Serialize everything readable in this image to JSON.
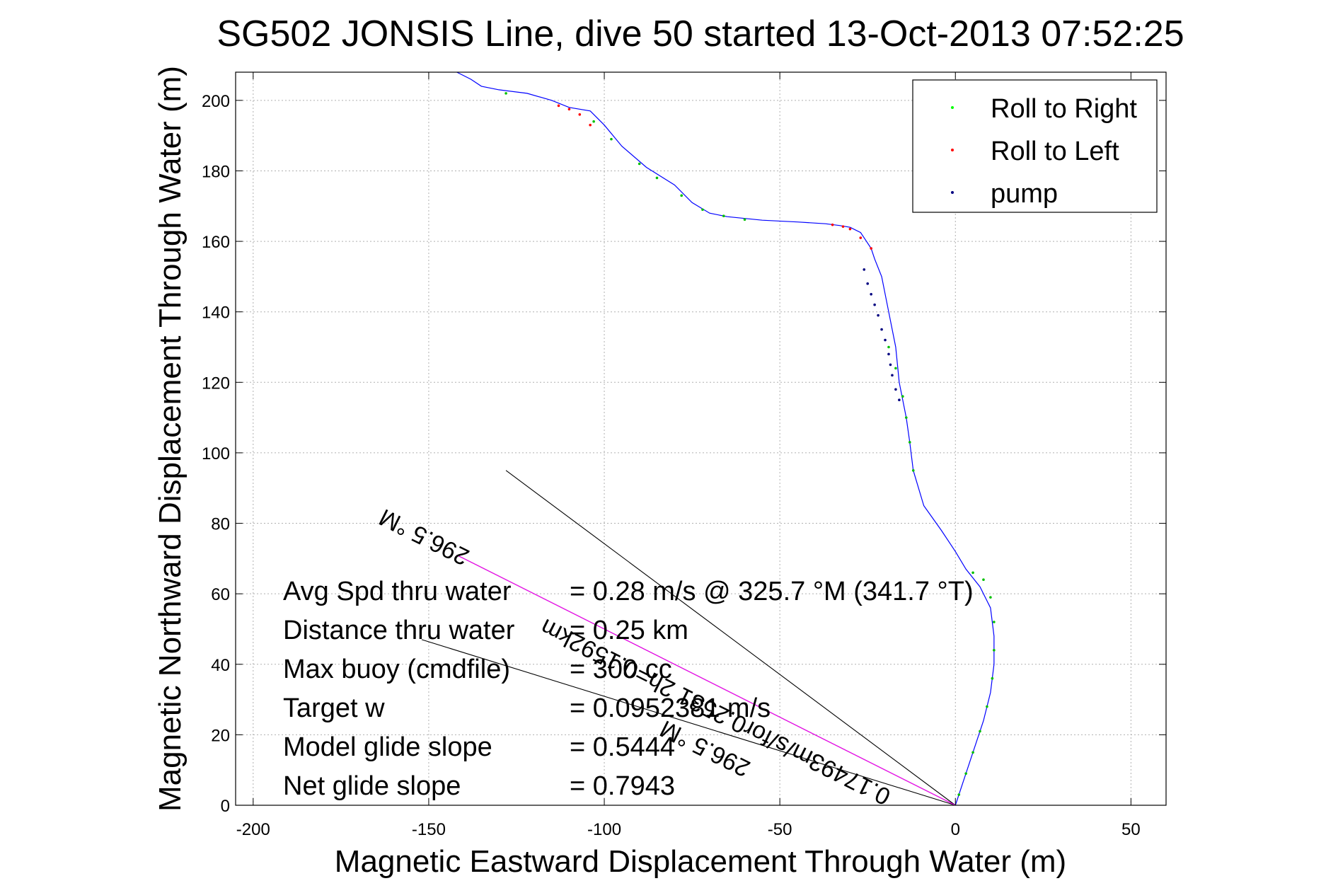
{
  "chart_data": {
    "type": "line",
    "title": "SG502 JONSIS Line, dive 50 started 13-Oct-2013 07:52:25",
    "xlabel": "Magnetic Eastward Displacement Through Water (m)",
    "ylabel": "Magnetic Northward Displacement Through Water (m)",
    "xlim": [
      -205,
      60
    ],
    "ylim": [
      0,
      208
    ],
    "xticks": [
      -200,
      -150,
      -100,
      -50,
      0,
      50
    ],
    "yticks": [
      0,
      20,
      40,
      60,
      80,
      100,
      120,
      140,
      160,
      180,
      200
    ],
    "grid": true,
    "legend_position": "top-right",
    "legend": [
      {
        "label": "Roll to Right",
        "color": "#00ff00"
      },
      {
        "label": "Roll to Left",
        "color": "#ff0000"
      },
      {
        "label": "pump",
        "color": "#000080"
      }
    ],
    "track": {
      "color": "#0000ff",
      "x": [
        0,
        2,
        4,
        6,
        8,
        10,
        11,
        11,
        10,
        7,
        3,
        0,
        -4,
        -9,
        -12,
        -13,
        -14,
        -16,
        -17,
        -19,
        -21,
        -23,
        -24,
        -26,
        -27,
        -30,
        -33,
        -37,
        -45,
        -55,
        -65,
        -70,
        -75,
        -80,
        -88,
        -95,
        -100,
        -104,
        -110,
        -115,
        -122,
        -130,
        -135,
        -138,
        -142
      ],
      "y": [
        0,
        6,
        12,
        18,
        24,
        32,
        40,
        48,
        56,
        62,
        67,
        72,
        78,
        85,
        95,
        103,
        110,
        120,
        130,
        140,
        150,
        155,
        158,
        161,
        162.5,
        164,
        164.5,
        165,
        165.5,
        166,
        167,
        168,
        171,
        176,
        181,
        187,
        193,
        197,
        198,
        200,
        202,
        203,
        204,
        206,
        208
      ]
    },
    "symbols": {
      "roll_right": {
        "color": "#00c000",
        "x": [
          1,
          3,
          5,
          7,
          9,
          10.5,
          11,
          11,
          10,
          8,
          5,
          -12,
          -13,
          -14,
          -15,
          -17,
          -19,
          -60,
          -66,
          -72,
          -78,
          -85,
          -90,
          -98,
          -103,
          -128
        ],
        "y": [
          3,
          9,
          15,
          21,
          28,
          36,
          44,
          52,
          59,
          64,
          66,
          95,
          103,
          110,
          116,
          124,
          130,
          166.2,
          167.2,
          169,
          173,
          178,
          182,
          189,
          194,
          202
        ]
      },
      "roll_left": {
        "color": "#ff0000",
        "x": [
          -24,
          -27,
          -30,
          -32,
          -35,
          -104,
          -107,
          -110,
          -113
        ],
        "y": [
          158,
          161,
          163.5,
          164.2,
          164.7,
          193,
          196,
          197.5,
          198.5
        ]
      },
      "pump": {
        "color": "#000080",
        "x": [
          -26,
          -25,
          -24,
          -23,
          -22,
          -21,
          -20,
          -19,
          -18.5,
          -18,
          -17,
          -16
        ],
        "y": [
          152,
          148,
          145,
          142,
          139,
          135,
          132,
          128,
          125,
          122,
          118,
          115
        ]
      }
    },
    "lines": [
      {
        "color": "#000000",
        "x": [
          0,
          -128
        ],
        "y": [
          0,
          95
        ]
      },
      {
        "color": "#000000",
        "x": [
          0,
          -152
        ],
        "y": [
          0,
          47
        ]
      },
      {
        "color": "#000000",
        "x": [
          0,
          -142
        ],
        "y": [
          0,
          71
        ]
      },
      {
        "color": "#ff00ff",
        "x": [
          0,
          -142
        ],
        "y": [
          0,
          71
        ]
      }
    ],
    "annotations": [
      {
        "text": "0.17493m/s/for0.2531 2h=0.1592km",
        "x": -18,
        "y": 4,
        "angle_deg": 26.5
      },
      {
        "text": "296.5 °M",
        "x": -58,
        "y": 12,
        "angle_deg": 26.5
      },
      {
        "text": "296.5 °M",
        "x": -138,
        "y": 72,
        "angle_deg": 26.5
      }
    ],
    "stats": [
      {
        "label": "Avg Spd thru water",
        "value": "=  0.28 m/s @ 325.7 °M (341.7 °T)"
      },
      {
        "label": "Distance thru water",
        "value": "=  0.25 km"
      },
      {
        "label": "Max buoy (cmdfile)",
        "value": "= 300 cc"
      },
      {
        "label": "Target w",
        "value": "= 0.0952381 m/s"
      },
      {
        "label": "Model glide slope",
        "value": "= 0.5444"
      },
      {
        "label": "Net glide slope",
        "value": "= 0.7943"
      }
    ]
  }
}
